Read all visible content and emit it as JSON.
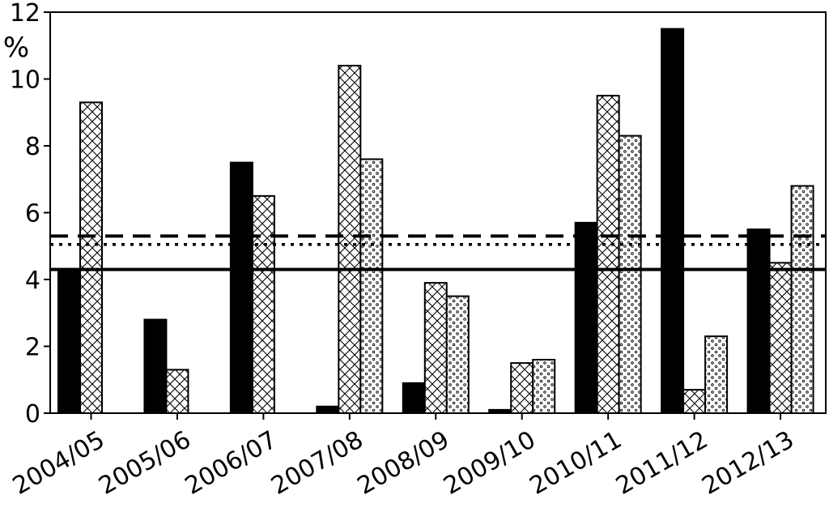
{
  "chart_data": {
    "type": "bar",
    "title": "",
    "xlabel": "",
    "ylabel": "%",
    "ylim": [
      0,
      12
    ],
    "yticks": [
      "0",
      "2",
      "4",
      "6",
      "8",
      "10",
      "12"
    ],
    "grid": false,
    "categories": [
      "2004/05",
      "2005/06",
      "2006/07",
      "2007/08",
      "2008/09",
      "2009/10",
      "2010/11",
      "2011/12",
      "2012/13"
    ],
    "series": [
      {
        "pattern": "solid-black",
        "values": [
          4.3,
          2.8,
          7.5,
          0.2,
          0.9,
          0.1,
          5.7,
          11.5,
          5.5
        ]
      },
      {
        "pattern": "crosshatch",
        "values": [
          9.3,
          1.3,
          6.5,
          10.4,
          3.9,
          1.5,
          9.5,
          0.7,
          4.5
        ]
      },
      {
        "pattern": "dotted",
        "values": [
          null,
          null,
          null,
          7.6,
          3.5,
          1.6,
          8.3,
          2.3,
          6.8
        ]
      }
    ],
    "reference_lines": [
      {
        "style": "solid",
        "value": 4.3
      },
      {
        "style": "dashed",
        "value": 5.3
      },
      {
        "style": "dotted",
        "value": 5.05
      }
    ]
  }
}
